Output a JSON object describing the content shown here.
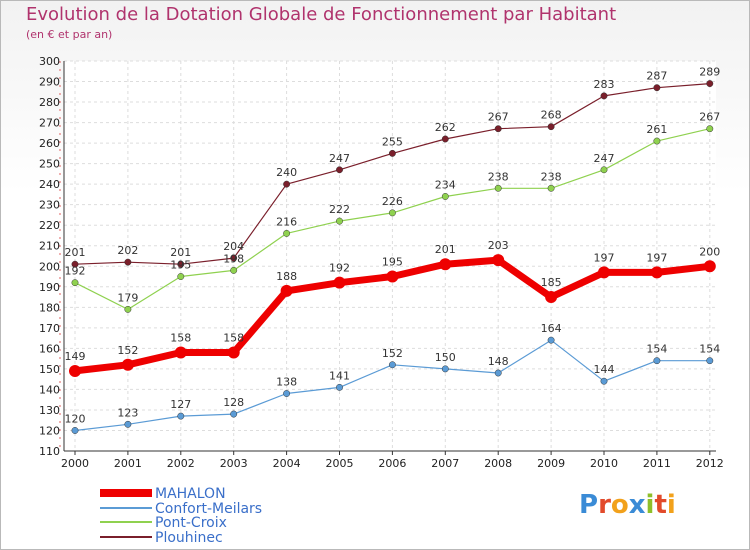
{
  "header": {
    "title": "Evolution de la Dotation Globale de Fonctionnement par Habitant",
    "subtitle": "(en € et par an)"
  },
  "logo": {
    "text": "Proxiti",
    "letters": [
      "P",
      "r",
      "o",
      "x",
      "i",
      "t",
      "i"
    ]
  },
  "chart_data": {
    "type": "line",
    "title": "Evolution de la Dotation Globale de Fonctionnement par Habitant",
    "subtitle": "(en € et par an)",
    "xlabel": "",
    "ylabel": "",
    "x": [
      "2000",
      "2001",
      "2002",
      "2003",
      "2004",
      "2005",
      "2006",
      "2007",
      "2008",
      "2009",
      "2010",
      "2011",
      "2012"
    ],
    "ylim": [
      110,
      300
    ],
    "yticks": [
      110,
      120,
      130,
      140,
      150,
      160,
      170,
      180,
      190,
      200,
      210,
      220,
      230,
      240,
      250,
      260,
      270,
      280,
      290,
      300
    ],
    "grid": true,
    "legend_position": "bottom-left",
    "series": [
      {
        "name": "MAHALON",
        "color": "#ee0000",
        "values": [
          149,
          152,
          158,
          158,
          188,
          192,
          195,
          201,
          203,
          185,
          197,
          197,
          200
        ]
      },
      {
        "name": "Confort-Meilars",
        "color": "#5b9bd5",
        "values": [
          120,
          123,
          127,
          128,
          138,
          141,
          152,
          150,
          148,
          164,
          144,
          154,
          154
        ]
      },
      {
        "name": "Pont-Croix",
        "color": "#8fd14f",
        "values": [
          192,
          179,
          195,
          198,
          216,
          222,
          226,
          234,
          238,
          238,
          247,
          261,
          267
        ]
      },
      {
        "name": "Plouhinec",
        "color": "#7a1f2b",
        "values": [
          201,
          202,
          201,
          204,
          240,
          247,
          255,
          262,
          267,
          268,
          283,
          287,
          289
        ]
      }
    ]
  }
}
